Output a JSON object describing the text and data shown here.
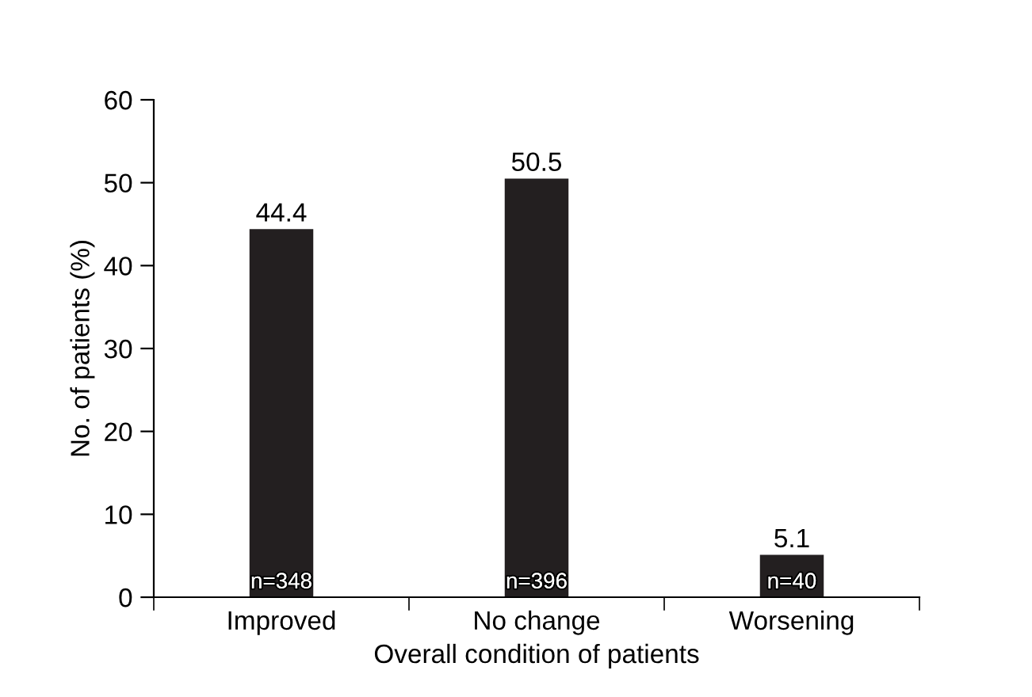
{
  "chart_data": {
    "type": "bar",
    "xlabel": "Overall condition of patients",
    "ylabel": "No. of patients (%)",
    "categories": [
      "Improved",
      "No change",
      "Worsening"
    ],
    "values": [
      44.4,
      50.5,
      5.1
    ],
    "color": "#231f20",
    "data_labels": true,
    "ylim": [
      0,
      60
    ],
    "yticks": [
      0,
      10,
      20,
      30,
      40,
      50,
      60
    ],
    "grid": false,
    "legend": false,
    "annotations": [
      {
        "text": "n=348",
        "x": "Improved",
        "y": 0
      },
      {
        "text": "n=396",
        "x": "No change",
        "y": 0
      },
      {
        "text": "n=40",
        "x": "Worsening",
        "y": 0
      }
    ]
  }
}
